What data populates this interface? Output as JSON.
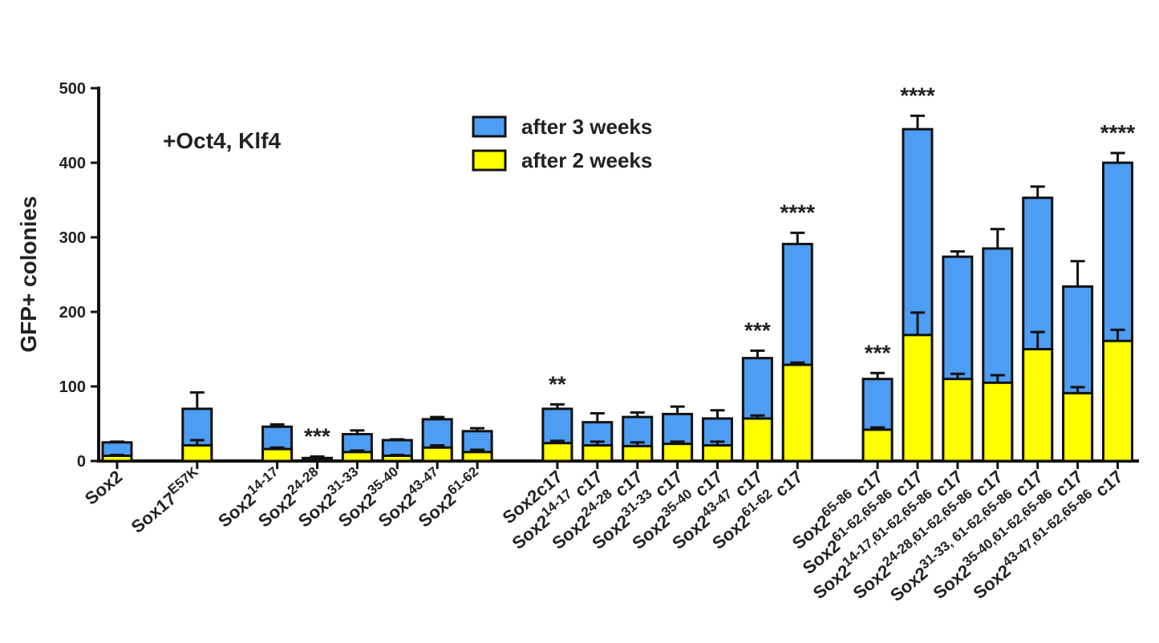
{
  "chart_data": {
    "type": "bar",
    "ylabel": "GFP+ colonies",
    "annotation": "+Oct4, Klf4",
    "categories": [
      {
        "text": "Sox2"
      },
      null,
      {
        "text": "Sox17",
        "sup": "E57K"
      },
      null,
      {
        "text": "Sox2",
        "sup": "14-17"
      },
      {
        "text": "Sox2",
        "sup": "24-28"
      },
      {
        "text": "Sox2",
        "sup": "31-33"
      },
      {
        "text": "Sox2",
        "sup": "35-40"
      },
      {
        "text": "Sox2",
        "sup": "43-47"
      },
      {
        "text": "Sox2",
        "sup": "61-62"
      },
      null,
      {
        "text": "Sox2c17"
      },
      {
        "text": "Sox2",
        "sup": "14-17",
        "after": "c17"
      },
      {
        "text": "Sox2",
        "sup": "24-28",
        "after": "c17"
      },
      {
        "text": "Sox2",
        "sup": "31-33",
        "after": "c17"
      },
      {
        "text": "Sox2",
        "sup": "35-40",
        "after": "c17"
      },
      {
        "text": "Sox2",
        "sup": "43-47",
        "after": "c17"
      },
      {
        "text": "Sox2",
        "sup": "61-62",
        "after": "c17"
      },
      null,
      {
        "text": "Sox2",
        "sup": "65-86",
        "after": "c17"
      },
      {
        "text": "Sox2",
        "sup": "61-62,65-86",
        "after": "c17"
      },
      {
        "text": "Sox2",
        "sup": "14-17,61-62,65-86",
        "after": "c17"
      },
      {
        "text": "Sox2",
        "sup": "24-28,61-62,65-86",
        "after": "c17"
      },
      {
        "text": "Sox2",
        "sup": "31-33, 61-62,65-86",
        "after": "c17"
      },
      {
        "text": "Sox2",
        "sup": "35-40,61-62,65-86",
        "after": "c17"
      },
      {
        "text": "Sox2",
        "sup": "43-47,61-62,65-86",
        "after": "c17"
      }
    ],
    "series": [
      {
        "name": "after 3 weeks",
        "color": "#4d9df2",
        "values": [
          25,
          null,
          70,
          null,
          46,
          4,
          36,
          28,
          56,
          40,
          null,
          70,
          52,
          59,
          63,
          57,
          138,
          291,
          null,
          110,
          445,
          274,
          285,
          353,
          234,
          400
        ],
        "errors": [
          1,
          null,
          22,
          null,
          3,
          2,
          5,
          1,
          3,
          4,
          null,
          6,
          12,
          6,
          10,
          11,
          10,
          15,
          null,
          8,
          18,
          7,
          26,
          15,
          34,
          13
        ]
      },
      {
        "name": "after 2 weeks",
        "color": "#ffff00",
        "values": [
          7,
          null,
          21,
          null,
          16,
          3,
          12,
          7,
          18,
          12,
          null,
          24,
          21,
          20,
          23,
          21,
          57,
          129,
          null,
          42,
          169,
          110,
          105,
          150,
          91,
          161
        ],
        "errors": [
          1,
          null,
          7,
          null,
          2,
          1,
          2,
          1,
          3,
          3,
          null,
          3,
          5,
          5,
          3,
          5,
          4,
          3,
          null,
          3,
          30,
          7,
          10,
          23,
          8,
          15
        ]
      }
    ],
    "significance": [
      null,
      null,
      null,
      null,
      null,
      "***",
      null,
      null,
      null,
      null,
      null,
      "**",
      null,
      null,
      null,
      null,
      "***",
      "****",
      null,
      "***",
      "****",
      null,
      null,
      null,
      null,
      "****"
    ],
    "ylim": [
      0,
      500
    ],
    "yticks": [
      0,
      100,
      200,
      300,
      400,
      500
    ],
    "legend": "top-center"
  }
}
